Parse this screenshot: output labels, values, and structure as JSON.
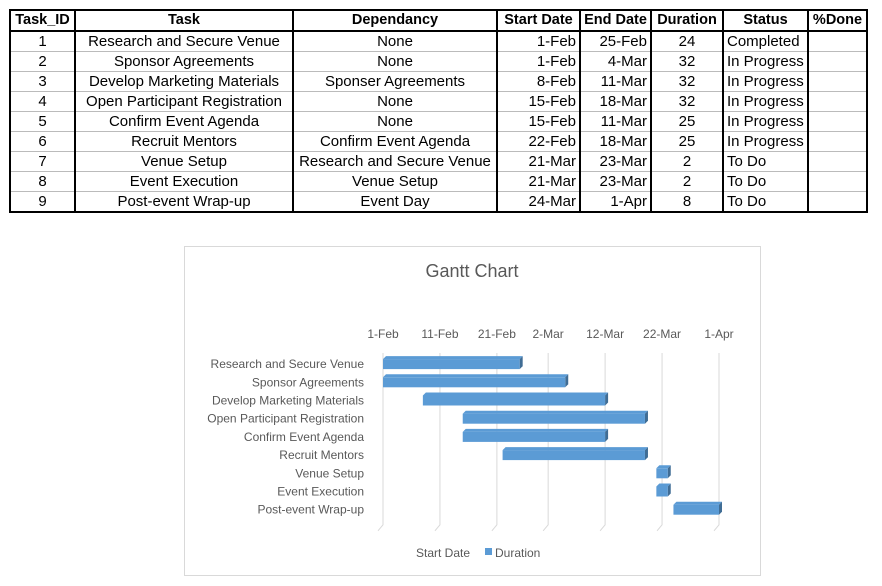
{
  "table": {
    "headers": [
      "Task_ID",
      "Task",
      "Dependancy",
      "Start Date",
      "End Date",
      "Duration",
      "Status",
      "%Done"
    ],
    "rows": [
      [
        "1",
        "Research and Secure Venue",
        "None",
        "1-Feb",
        "25-Feb",
        "24",
        "Completed",
        ""
      ],
      [
        "2",
        "Sponsor Agreements",
        "None",
        "1-Feb",
        "4-Mar",
        "32",
        "In Progress",
        ""
      ],
      [
        "3",
        "Develop Marketing Materials",
        "Sponser Agreements",
        "8-Feb",
        "11-Mar",
        "32",
        "In Progress",
        ""
      ],
      [
        "4",
        "Open Participant Registration",
        "None",
        "15-Feb",
        "18-Mar",
        "32",
        "In Progress",
        ""
      ],
      [
        "5",
        "Confirm Event Agenda",
        "None",
        "15-Feb",
        "11-Mar",
        "25",
        "In Progress",
        ""
      ],
      [
        "6",
        "Recruit Mentors",
        "Confirm Event Agenda",
        "22-Feb",
        "18-Mar",
        "25",
        "In Progress",
        ""
      ],
      [
        "7",
        "Venue Setup",
        "Research and Secure Venue",
        "21-Mar",
        "23-Mar",
        "2",
        "To Do",
        ""
      ],
      [
        "8",
        "Event Execution",
        "Venue Setup",
        "21-Mar",
        "23-Mar",
        "2",
        "To Do",
        ""
      ],
      [
        "9",
        "Post-event Wrap-up",
        "Event Day",
        "24-Mar",
        "1-Apr",
        "8",
        "To Do",
        ""
      ]
    ]
  },
  "chart_data": {
    "type": "bar",
    "orientation": "horizontal-stacked",
    "title": "Gantt Chart",
    "categories": [
      "Research and Secure Venue",
      "Sponsor Agreements",
      "Develop Marketing Materials",
      "Open Participant Registration",
      "Confirm Event Agenda",
      "Recruit Mentors",
      "Venue Setup",
      "Event Execution",
      "Post-event Wrap-up"
    ],
    "series": [
      {
        "name": "Start Date",
        "values": [
          "1-Feb",
          "1-Feb",
          "8-Feb",
          "15-Feb",
          "15-Feb",
          "22-Feb",
          "21-Mar",
          "21-Mar",
          "24-Mar"
        ],
        "visible": false
      },
      {
        "name": "Duration",
        "values": [
          24,
          32,
          32,
          32,
          25,
          25,
          2,
          2,
          8
        ],
        "color": "#5b9bd5"
      }
    ],
    "x_ticks": [
      "1-Feb",
      "11-Feb",
      "21-Feb",
      "2-Mar",
      "12-Mar",
      "22-Mar",
      "1-Apr"
    ],
    "xlim": [
      "1-Feb",
      "1-Apr"
    ],
    "x_axis_position": "top",
    "grid": true,
    "legend": "bottom"
  }
}
